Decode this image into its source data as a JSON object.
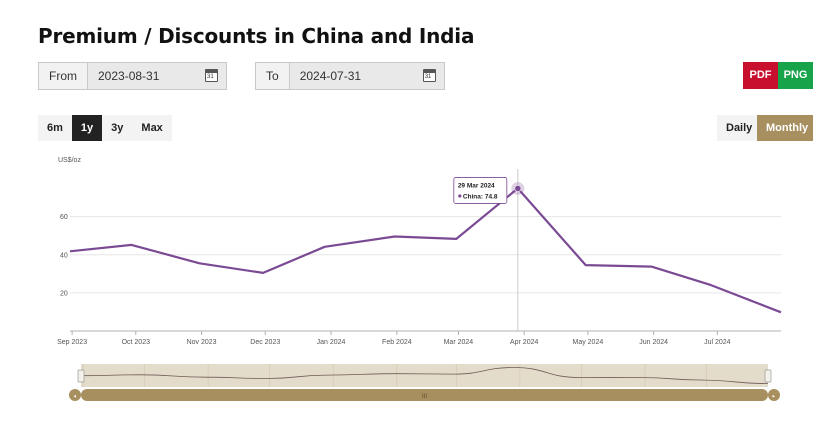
{
  "header": {
    "title": "Premium / Discounts in China and India"
  },
  "date_range": {
    "from_label": "From",
    "from_value": "2023-08-31",
    "to_label": "To",
    "to_value": "2024-07-31",
    "calendar_day": "31"
  },
  "export": {
    "pdf_label": "PDF",
    "png_label": "PNG"
  },
  "range_buttons": [
    {
      "label": "6m",
      "active": false
    },
    {
      "label": "1y",
      "active": true
    },
    {
      "label": "3y",
      "active": false
    },
    {
      "label": "Max",
      "active": false
    }
  ],
  "period_buttons": {
    "daily_label": "Daily",
    "monthly_label": "Monthly"
  },
  "navigator": {
    "handle_glyph": "III"
  },
  "tooltip": {
    "date": "29 Mar 2024",
    "text": "China: 74.8"
  },
  "colors": {
    "series": "#7a4a94",
    "accent_gold": "#a88f5f",
    "pdf": "#c8102e",
    "png": "#17a34a",
    "grid": "#e6e6e6"
  },
  "chart_data": {
    "type": "line",
    "title": "",
    "ylabel": "US$/oz",
    "xlabel": "",
    "ylim": [
      0,
      85
    ],
    "yticks": [
      20,
      40,
      60
    ],
    "x_tick_labels": [
      "Sep 2023",
      "Oct 2023",
      "Nov 2023",
      "Dec 2023",
      "Jan 2024",
      "Feb 2024",
      "Mar 2024",
      "Apr 2024",
      "May 2024",
      "Jun 2024",
      "Jul 2024"
    ],
    "x": [
      "2023-08-31",
      "2023-09-29",
      "2023-10-31",
      "2023-11-30",
      "2023-12-29",
      "2024-01-31",
      "2024-02-29",
      "2024-03-29",
      "2024-04-30",
      "2024-05-31",
      "2024-06-28",
      "2024-07-31"
    ],
    "series": [
      {
        "name": "China",
        "values": [
          41.8,
          45.2,
          35.5,
          30.5,
          44.2,
          49.6,
          48.3,
          74.8,
          34.6,
          33.8,
          24.1,
          9.8
        ]
      }
    ],
    "grid": true,
    "tooltip_point": "2024-03-29"
  }
}
